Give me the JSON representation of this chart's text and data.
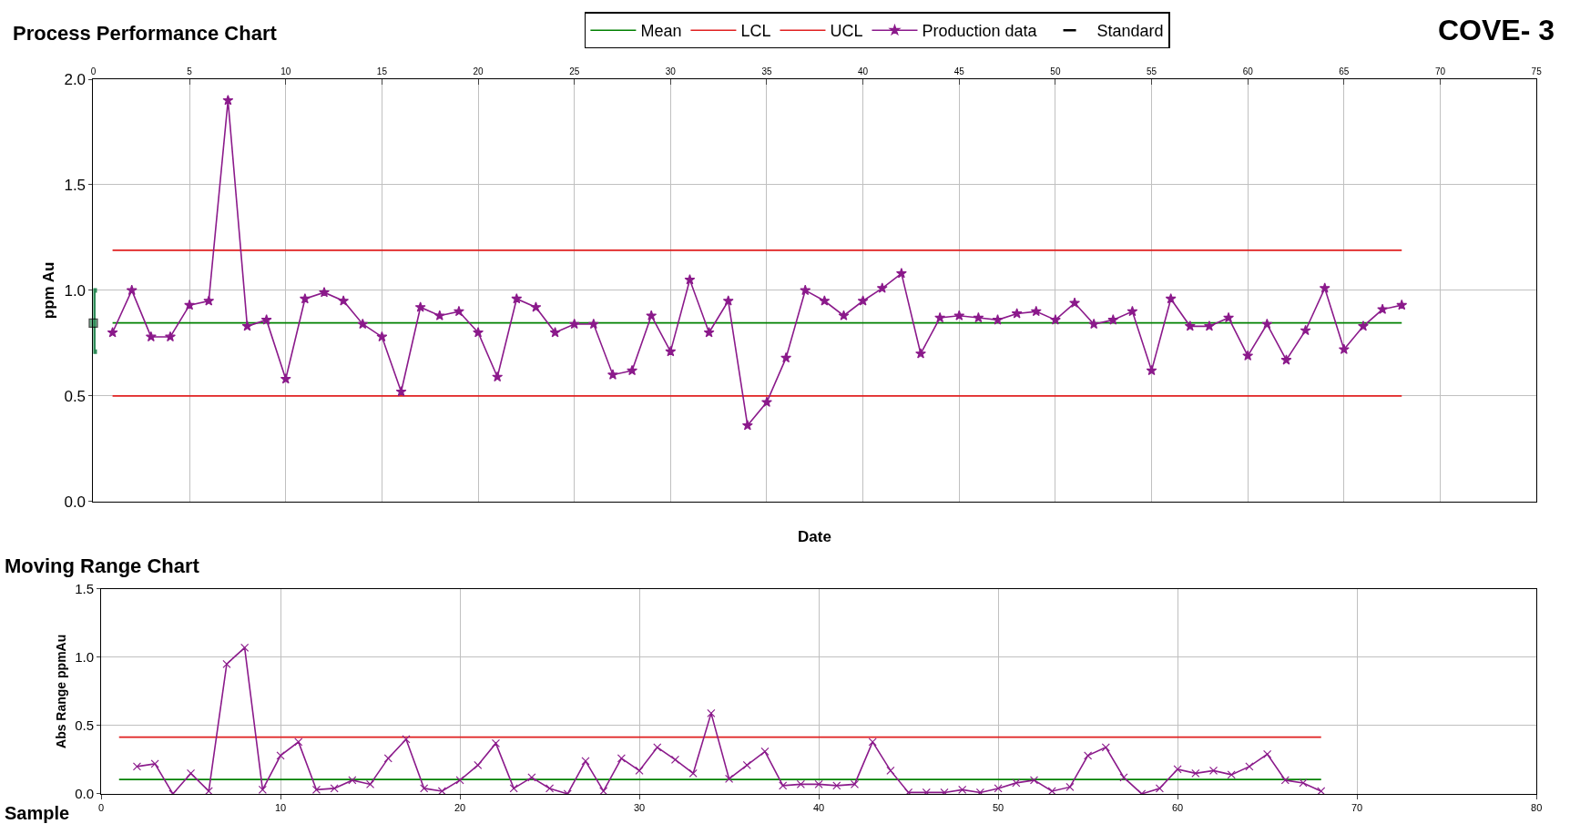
{
  "chart_data": [
    {
      "type": "line",
      "title": "Process Performance Chart",
      "xlabel": "Date",
      "ylabel": "ppm Au",
      "annotations": [
        "COVE- 3"
      ],
      "xlim": [
        0,
        75
      ],
      "xticks": [
        0,
        5,
        10,
        15,
        20,
        25,
        30,
        35,
        40,
        45,
        50,
        55,
        60,
        65,
        70,
        75
      ],
      "ylim": [
        0,
        2
      ],
      "yticks": [
        {
          "value": 0,
          "label": "0.0"
        },
        {
          "value": 0.5,
          "label": "0.5"
        },
        {
          "value": 1,
          "label": "1.0"
        },
        {
          "value": 1.5,
          "label": "1.5"
        },
        {
          "value": 2,
          "label": "2.0"
        }
      ],
      "grid": true,
      "legend": "top",
      "series": [
        {
          "name": "Mean",
          "type": "line",
          "color": "#008000",
          "marker": "none",
          "x": [
            1,
            68
          ],
          "values": [
            0.846,
            0.846
          ]
        },
        {
          "name": "LCL",
          "type": "line",
          "color": "#e02020",
          "marker": "none",
          "x": [
            1,
            68
          ],
          "values": [
            0.5,
            0.5
          ]
        },
        {
          "name": "UCL",
          "type": "line",
          "color": "#e02020",
          "marker": "none",
          "x": [
            1,
            68
          ],
          "values": [
            1.19,
            1.19
          ]
        },
        {
          "name": "Production data",
          "type": "line",
          "color": "#8b1a8b",
          "marker": "star",
          "x": [
            1,
            2,
            3,
            4,
            5,
            6,
            7,
            8,
            9,
            10,
            11,
            12,
            13,
            14,
            15,
            16,
            17,
            18,
            19,
            20,
            21,
            22,
            23,
            24,
            25,
            26,
            27,
            28,
            29,
            30,
            31,
            32,
            33,
            34,
            35,
            36,
            37,
            38,
            39,
            40,
            41,
            42,
            43,
            44,
            45,
            46,
            47,
            48,
            49,
            50,
            51,
            52,
            53,
            54,
            55,
            56,
            57,
            58,
            59,
            60,
            61,
            62,
            63,
            64,
            65,
            66,
            67,
            68
          ],
          "values": [
            0.8,
            1.0,
            0.78,
            0.78,
            0.93,
            0.95,
            1.9,
            0.83,
            0.86,
            0.58,
            0.96,
            0.99,
            0.95,
            0.84,
            0.78,
            0.52,
            0.92,
            0.88,
            0.9,
            0.8,
            0.59,
            0.96,
            0.92,
            0.8,
            0.84,
            0.84,
            0.6,
            0.62,
            0.88,
            0.71,
            1.05,
            0.8,
            0.95,
            0.36,
            0.47,
            0.68,
            1.0,
            0.95,
            0.88,
            0.95,
            1.01,
            1.08,
            0.7,
            0.87,
            0.88,
            0.87,
            0.86,
            0.89,
            0.9,
            0.86,
            0.94,
            0.84,
            0.86,
            0.9,
            0.62,
            0.96,
            0.83,
            0.83,
            0.87,
            0.69,
            0.84,
            0.67,
            0.81,
            1.01,
            0.72,
            0.83,
            0.91,
            0.93
          ]
        },
        {
          "name": "Standard",
          "type": "scatter",
          "color": "#2e8b57",
          "marker": "square",
          "x": [
            0
          ],
          "values": [
            0.845
          ],
          "errors": [
            [
              0.71,
              1.0
            ]
          ]
        }
      ]
    },
    {
      "type": "line",
      "title": "Moving Range Chart",
      "xlabel": "Sample",
      "ylabel": "Abs Range ppmAu",
      "xlim": [
        0,
        80
      ],
      "xticks": [
        0,
        10,
        20,
        30,
        40,
        50,
        60,
        70,
        80
      ],
      "ylim": [
        0,
        1.5
      ],
      "yticks": [
        {
          "value": 0,
          "label": "0.0"
        },
        {
          "value": 0.5,
          "label": "0.5"
        },
        {
          "value": 1,
          "label": "1.0"
        },
        {
          "value": 1.5,
          "label": "1.5"
        }
      ],
      "grid": true,
      "series": [
        {
          "type": "line",
          "color": "#008000",
          "marker": "none",
          "x": [
            1,
            68
          ],
          "values": [
            0.105,
            0.105
          ]
        },
        {
          "type": "line",
          "color": "#e02020",
          "marker": "none",
          "x": [
            1,
            68
          ],
          "values": [
            0.415,
            0.415
          ]
        },
        {
          "type": "line",
          "color": "#8b1a8b",
          "marker": "cross",
          "x": [
            2,
            3,
            4,
            5,
            6,
            7,
            8,
            9,
            10,
            11,
            12,
            13,
            14,
            15,
            16,
            17,
            18,
            19,
            20,
            21,
            22,
            23,
            24,
            25,
            26,
            27,
            28,
            29,
            30,
            31,
            32,
            33,
            34,
            35,
            36,
            37,
            38,
            39,
            40,
            41,
            42,
            43,
            44,
            45,
            46,
            47,
            48,
            49,
            50,
            51,
            52,
            53,
            54,
            55,
            56,
            57,
            58,
            59,
            60,
            61,
            62,
            63,
            64,
            65,
            66,
            67,
            68
          ],
          "values": [
            0.2,
            0.22,
            0.0,
            0.15,
            0.02,
            0.95,
            1.07,
            0.03,
            0.28,
            0.38,
            0.03,
            0.04,
            0.1,
            0.07,
            0.26,
            0.4,
            0.04,
            0.02,
            0.1,
            0.21,
            0.37,
            0.04,
            0.12,
            0.04,
            0.0,
            0.24,
            0.02,
            0.26,
            0.17,
            0.34,
            0.25,
            0.15,
            0.59,
            0.11,
            0.21,
            0.31,
            0.06,
            0.07,
            0.07,
            0.06,
            0.07,
            0.38,
            0.17,
            0.01,
            0.01,
            0.01,
            0.03,
            0.01,
            0.04,
            0.08,
            0.1,
            0.02,
            0.05,
            0.28,
            0.34,
            0.12,
            0.0,
            0.04,
            0.18,
            0.15,
            0.17,
            0.14,
            0.2,
            0.29,
            0.1,
            0.08,
            0.02
          ]
        }
      ]
    }
  ]
}
